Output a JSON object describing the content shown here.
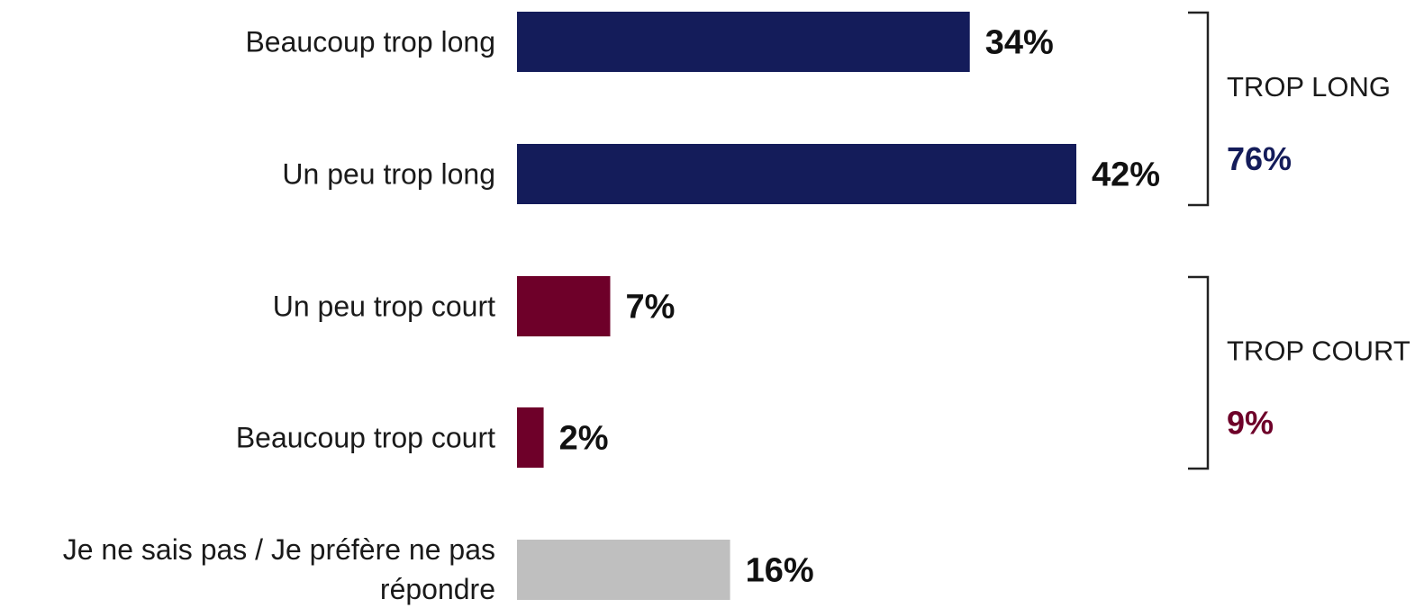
{
  "chart_data": {
    "type": "bar",
    "orientation": "horizontal",
    "categories": [
      "Beaucoup trop long",
      "Un peu trop long",
      "Un peu trop court",
      "Beaucoup trop court",
      "Je ne sais pas / Je préfère ne pas répondre"
    ],
    "values": [
      34,
      42,
      7,
      2,
      16
    ],
    "value_labels": [
      "34%",
      "42%",
      "7%",
      "2%",
      "16%"
    ],
    "bar_colors": [
      "#141c5a",
      "#141c5a",
      "#6e0029",
      "#6e0029",
      "#bfbfbf"
    ],
    "xlim": [
      0,
      42
    ],
    "grid": false,
    "legend": "none",
    "groups": [
      {
        "label": "TROP LONG",
        "total": "76%",
        "color": "#141c5a",
        "members": [
          0,
          1
        ]
      },
      {
        "label": "TROP COURT",
        "total": "9%",
        "color": "#6e0029",
        "members": [
          2,
          3
        ]
      }
    ]
  }
}
